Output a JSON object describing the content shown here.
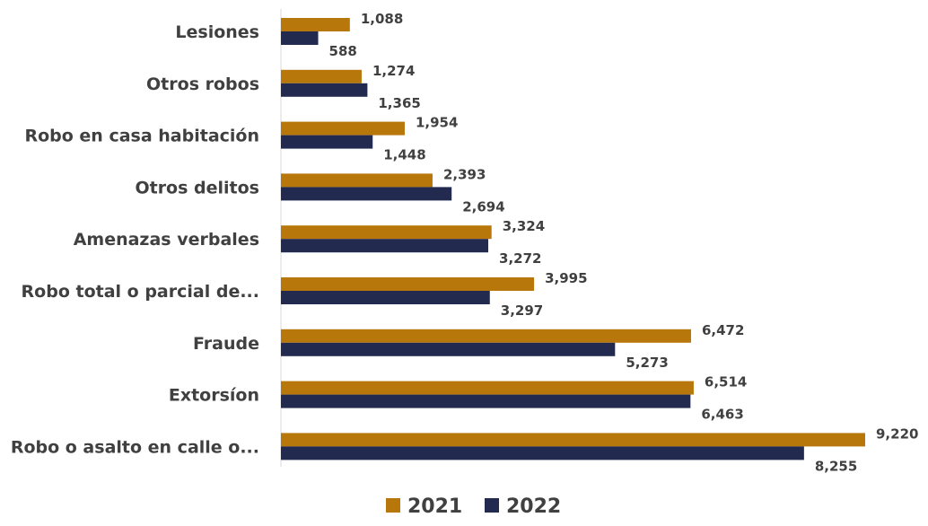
{
  "chart_data": {
    "type": "bar",
    "orientation": "horizontal",
    "categories": [
      "Lesiones",
      "Otros robos",
      "Robo en casa habitación",
      "Otros delitos",
      "Amenazas verbales",
      "Robo total o parcial de...",
      "Fraude",
      "Extorsíon",
      "Robo o asalto en calle o..."
    ],
    "series": [
      {
        "name": "2021",
        "color": "#B8770B",
        "values": [
          1088,
          1274,
          1954,
          2393,
          3324,
          3995,
          6472,
          6514,
          9220
        ],
        "labels": [
          "1,088",
          "1,274",
          "1,954",
          "2,393",
          "3,324",
          "3,995",
          "6,472",
          "6,514",
          "9,220"
        ]
      },
      {
        "name": "2022",
        "color": "#222A50",
        "values": [
          588,
          1365,
          1448,
          2694,
          3272,
          3297,
          5273,
          6463,
          8255
        ],
        "labels": [
          "588",
          "1,365",
          "1,448",
          "2,694",
          "3,272",
          "3,297",
          "5,273",
          "6,463",
          "8,255"
        ]
      }
    ],
    "title": "",
    "xlabel": "",
    "ylabel": "",
    "xlim": [
      0,
      9220
    ],
    "grid": false,
    "legend_position": "bottom-center"
  }
}
